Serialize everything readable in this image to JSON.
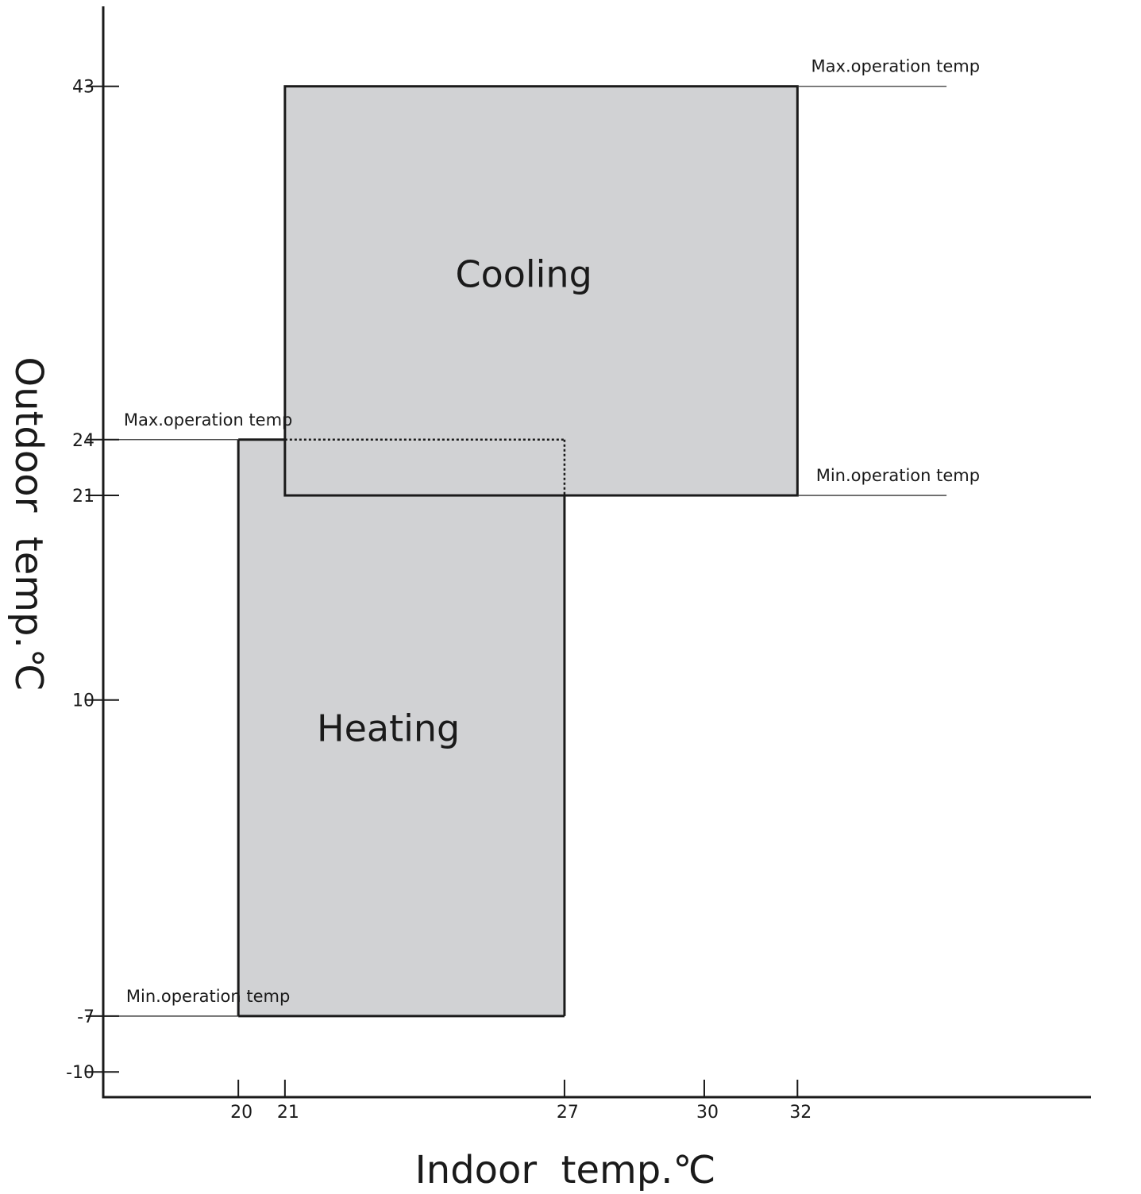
{
  "chart_data": {
    "type": "area",
    "xlabel": "Indoor  temp.℃",
    "ylabel": "Outdoor  temp.℃",
    "x_ticks": [
      20,
      21,
      27,
      30,
      32
    ],
    "y_ticks": [
      43,
      24,
      21,
      10,
      -7,
      -10
    ],
    "xlim": [
      17.1,
      38.3
    ],
    "ylim": [
      -11.4,
      47.3
    ],
    "regions": [
      {
        "name": "Cooling",
        "label": "Cooling",
        "x": [
          21,
          32
        ],
        "y": [
          21,
          43
        ]
      },
      {
        "name": "Heating",
        "label": "Heating",
        "x": [
          20,
          27
        ],
        "y": [
          -7,
          24
        ]
      }
    ],
    "annotations": [
      {
        "text": "Max.operation temp",
        "y": 43,
        "x_from": 32,
        "x_to": 35.2
      },
      {
        "text": "Min.operation temp",
        "y": 21,
        "x_from": 32,
        "x_to": 35.2
      },
      {
        "text": "Max.operation temp",
        "y": 24,
        "x_from": 20,
        "x_to": 17.0
      },
      {
        "text": "Min.operation temp",
        "y": -7,
        "x_from": 20,
        "x_to": 17.0
      }
    ],
    "region_fill": "#d1d2d4",
    "line_color": "#1a1a1a"
  }
}
